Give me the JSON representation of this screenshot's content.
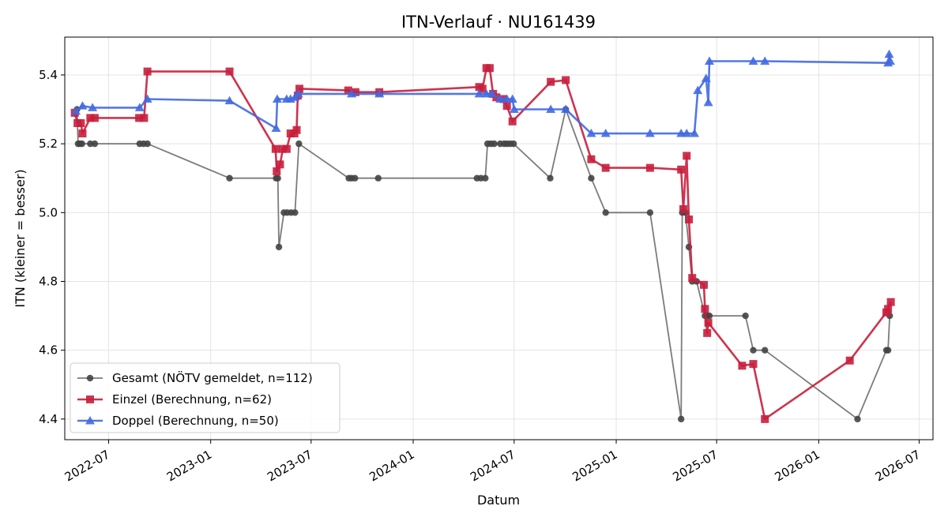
{
  "chart_data": {
    "type": "line",
    "title": "ITN-Verlauf · NU161439",
    "xlabel": "Datum",
    "ylabel": "ITN  (kleiner = besser)",
    "x_ticks": [
      "2022-07",
      "2023-01",
      "2023-07",
      "2024-01",
      "2024-07",
      "2025-01",
      "2025-07",
      "2026-01",
      "2026-07"
    ],
    "y_ticks": [
      "4.4",
      "4.6",
      "4.8",
      "5.0",
      "5.2",
      "5.4"
    ],
    "xlim": [
      "2022-04-13",
      "2026-07-26"
    ],
    "ylim": [
      4.34,
      5.51
    ],
    "grid": true,
    "legend_position": "lower-left",
    "series": [
      {
        "name": "Gesamt (NÖTV gemeldet, n=112)",
        "color": "#444444",
        "marker": "circle",
        "points": [
          [
            "2022-05-05",
            5.3
          ],
          [
            "2022-05-07",
            5.2
          ],
          [
            "2022-05-10",
            5.2
          ],
          [
            "2022-05-14",
            5.2
          ],
          [
            "2022-05-29",
            5.2
          ],
          [
            "2022-06-06",
            5.2
          ],
          [
            "2022-08-26",
            5.2
          ],
          [
            "2022-09-02",
            5.2
          ],
          [
            "2022-09-09",
            5.2
          ],
          [
            "2023-02-04",
            5.1
          ],
          [
            "2023-04-29",
            5.1
          ],
          [
            "2023-05-02",
            5.1
          ],
          [
            "2023-05-04",
            4.9
          ],
          [
            "2023-05-13",
            5.0
          ],
          [
            "2023-05-19",
            5.0
          ],
          [
            "2023-05-26",
            5.0
          ],
          [
            "2023-06-02",
            5.0
          ],
          [
            "2023-06-09",
            5.2
          ],
          [
            "2023-09-07",
            5.1
          ],
          [
            "2023-09-12",
            5.1
          ],
          [
            "2023-09-18",
            5.1
          ],
          [
            "2023-10-30",
            5.1
          ],
          [
            "2024-04-25",
            5.1
          ],
          [
            "2024-05-02",
            5.1
          ],
          [
            "2024-05-10",
            5.1
          ],
          [
            "2024-05-14",
            5.2
          ],
          [
            "2024-05-20",
            5.2
          ],
          [
            "2024-05-26",
            5.2
          ],
          [
            "2024-06-06",
            5.2
          ],
          [
            "2024-06-13",
            5.2
          ],
          [
            "2024-06-18",
            5.2
          ],
          [
            "2024-06-24",
            5.2
          ],
          [
            "2024-06-30",
            5.2
          ],
          [
            "2024-09-04",
            5.1
          ],
          [
            "2024-10-02",
            5.3
          ],
          [
            "2024-11-17",
            5.1
          ],
          [
            "2024-12-13",
            5.0
          ],
          [
            "2025-03-03",
            5.0
          ],
          [
            "2025-04-28",
            4.4
          ],
          [
            "2025-04-30",
            5.0
          ],
          [
            "2025-05-06",
            5.0
          ],
          [
            "2025-05-12",
            4.9
          ],
          [
            "2025-05-18",
            4.8
          ],
          [
            "2025-05-26",
            4.8
          ],
          [
            "2025-06-10",
            4.7
          ],
          [
            "2025-06-14",
            4.7
          ],
          [
            "2025-06-18",
            4.7
          ],
          [
            "2025-08-22",
            4.7
          ],
          [
            "2025-09-05",
            4.6
          ],
          [
            "2025-09-26",
            4.6
          ],
          [
            "2026-03-12",
            4.4
          ],
          [
            "2026-05-03",
            4.6
          ],
          [
            "2026-05-06",
            4.6
          ],
          [
            "2026-05-09",
            4.7
          ]
        ]
      },
      {
        "name": "Einzel (Berechnung, n=62)",
        "color": "#c81e3c",
        "marker": "square",
        "points": [
          [
            "2022-05-01",
            5.29
          ],
          [
            "2022-05-06",
            5.26
          ],
          [
            "2022-05-12",
            5.26
          ],
          [
            "2022-05-15",
            5.23
          ],
          [
            "2022-05-29",
            5.275
          ],
          [
            "2022-06-06",
            5.275
          ],
          [
            "2022-08-25",
            5.275
          ],
          [
            "2022-09-03",
            5.275
          ],
          [
            "2022-09-09",
            5.41
          ],
          [
            "2023-02-04",
            5.41
          ],
          [
            "2023-04-28",
            5.185
          ],
          [
            "2023-04-30",
            5.12
          ],
          [
            "2023-05-06",
            5.14
          ],
          [
            "2023-05-11",
            5.185
          ],
          [
            "2023-05-18",
            5.185
          ],
          [
            "2023-05-25",
            5.23
          ],
          [
            "2023-06-01",
            5.23
          ],
          [
            "2023-06-05",
            5.24
          ],
          [
            "2023-06-07",
            5.34
          ],
          [
            "2023-06-10",
            5.36
          ],
          [
            "2023-09-06",
            5.355
          ],
          [
            "2023-09-19",
            5.35
          ],
          [
            "2023-11-01",
            5.35
          ],
          [
            "2024-04-29",
            5.365
          ],
          [
            "2024-05-05",
            5.36
          ],
          [
            "2024-05-12",
            5.42
          ],
          [
            "2024-05-18",
            5.42
          ],
          [
            "2024-05-24",
            5.345
          ],
          [
            "2024-05-30",
            5.335
          ],
          [
            "2024-06-12",
            5.33
          ],
          [
            "2024-06-18",
            5.31
          ],
          [
            "2024-06-28",
            5.265
          ],
          [
            "2024-09-05",
            5.38
          ],
          [
            "2024-10-02",
            5.385
          ],
          [
            "2024-11-17",
            5.155
          ],
          [
            "2024-12-13",
            5.13
          ],
          [
            "2025-03-03",
            5.13
          ],
          [
            "2025-04-28",
            5.125
          ],
          [
            "2025-05-02",
            5.01
          ],
          [
            "2025-05-08",
            5.165
          ],
          [
            "2025-05-12",
            4.98
          ],
          [
            "2025-05-18",
            4.81
          ],
          [
            "2025-06-08",
            4.79
          ],
          [
            "2025-06-10",
            4.72
          ],
          [
            "2025-06-14",
            4.65
          ],
          [
            "2025-06-16",
            4.68
          ],
          [
            "2025-08-16",
            4.555
          ],
          [
            "2025-09-05",
            4.56
          ],
          [
            "2025-09-26",
            4.4
          ],
          [
            "2026-02-26",
            4.57
          ],
          [
            "2026-05-03",
            4.71
          ],
          [
            "2026-05-06",
            4.72
          ],
          [
            "2026-05-11",
            4.74
          ]
        ]
      },
      {
        "name": "Doppel (Berechnung, n=50)",
        "color": "#4169e1",
        "marker": "triangle",
        "points": [
          [
            "2022-05-03",
            5.295
          ],
          [
            "2022-05-15",
            5.31
          ],
          [
            "2022-06-02",
            5.305
          ],
          [
            "2022-08-26",
            5.305
          ],
          [
            "2022-09-09",
            5.33
          ],
          [
            "2023-02-04",
            5.325
          ],
          [
            "2023-04-29",
            5.245
          ],
          [
            "2023-05-01",
            5.33
          ],
          [
            "2023-05-18",
            5.33
          ],
          [
            "2023-05-25",
            5.33
          ],
          [
            "2023-06-02",
            5.335
          ],
          [
            "2023-06-08",
            5.345
          ],
          [
            "2023-09-12",
            5.345
          ],
          [
            "2023-11-01",
            5.345
          ],
          [
            "2024-04-29",
            5.345
          ],
          [
            "2024-05-12",
            5.345
          ],
          [
            "2024-05-22",
            5.345
          ],
          [
            "2024-06-06",
            5.33
          ],
          [
            "2024-06-18",
            5.33
          ],
          [
            "2024-06-28",
            5.33
          ],
          [
            "2024-07-01",
            5.3
          ],
          [
            "2024-09-05",
            5.3
          ],
          [
            "2024-10-02",
            5.3
          ],
          [
            "2024-11-17",
            5.23
          ],
          [
            "2024-12-13",
            5.23
          ],
          [
            "2025-03-03",
            5.23
          ],
          [
            "2025-04-28",
            5.23
          ],
          [
            "2025-05-08",
            5.23
          ],
          [
            "2025-05-22",
            5.23
          ],
          [
            "2025-05-28",
            5.355
          ],
          [
            "2025-06-12",
            5.39
          ],
          [
            "2025-06-16",
            5.32
          ],
          [
            "2025-06-18",
            5.44
          ],
          [
            "2025-09-05",
            5.44
          ],
          [
            "2025-09-26",
            5.44
          ],
          [
            "2026-05-06",
            5.435
          ],
          [
            "2026-05-08",
            5.46
          ],
          [
            "2026-05-10",
            5.44
          ]
        ]
      }
    ]
  }
}
